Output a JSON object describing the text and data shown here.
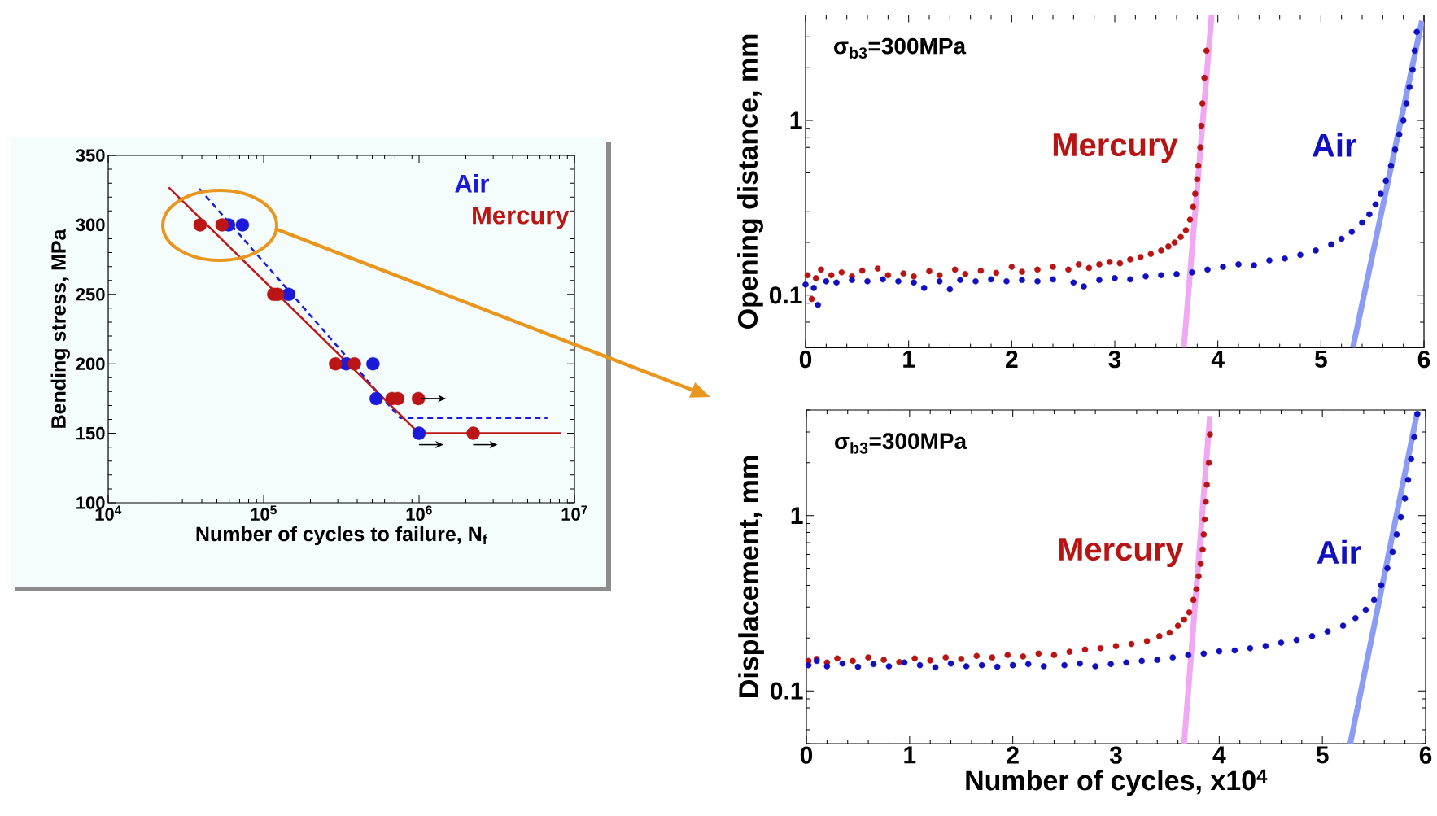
{
  "chart_data": [
    {
      "type": "scatter",
      "xlabel": "Number of cycles to failure, N$_{f}$",
      "ylabel": "Bending stress, MPa",
      "log": "x",
      "xlim": [
        10000,
        10000000
      ],
      "xticks": [
        {
          "value": 10000,
          "label": "10$^{4}$"
        },
        {
          "value": 100000,
          "label": "10$^{5}$"
        },
        {
          "value": 1000000,
          "label": "10$^{6}$"
        },
        {
          "value": 10000000,
          "label": "10$^{7}$"
        }
      ],
      "ylim": [
        100,
        350
      ],
      "yticks": [
        100,
        150,
        200,
        250,
        300,
        350
      ],
      "series": [
        {
          "name": "Air",
          "marker": "circle",
          "color": "#1a1ad8",
          "x": [
            59500,
            73000,
            145000,
            340000,
            505000,
            530000,
            1000000
          ],
          "values": [
            300,
            300,
            250,
            200,
            200,
            175,
            150
          ]
        },
        {
          "name": "Mercury",
          "marker": "circle",
          "color": "#bb1515",
          "x": [
            39000,
            54000,
            116000,
            123000,
            290000,
            384000,
            670000,
            730000,
            990000,
            2230000
          ],
          "values": [
            300,
            300,
            250,
            250,
            200,
            200,
            175,
            175,
            175,
            150
          ]
        },
        {
          "type": "line",
          "marker": "none",
          "line_style": "dashed",
          "color": "#1a1ae0",
          "x": [
            38600,
            756000,
            6700000
          ],
          "values": [
            326,
            161,
            161
          ]
        },
        {
          "type": "line",
          "marker": "none",
          "line_style": "solid",
          "color": "#c01818",
          "x": [
            24500,
            1000000,
            8200000
          ],
          "values": [
            327,
            150,
            150
          ]
        }
      ]
    },
    {
      "type": "scatter",
      "ylabel": "Opening distance, mm",
      "log": "y",
      "annotations": [
        "σ$_{b3}$=300MPa"
      ],
      "xlim": [
        0,
        6
      ],
      "xticks": [
        0,
        1,
        2,
        3,
        4,
        5,
        6
      ],
      "ylim": [
        0.05,
        4
      ],
      "yticks": [
        0.1,
        1
      ],
      "series": [
        {
          "name": "Mercury",
          "marker": "circle",
          "color": "#b81414",
          "x": [
            0.02,
            0.06,
            0.1,
            0.15,
            0.25,
            0.35,
            0.45,
            0.55,
            0.7,
            0.8,
            0.95,
            1.05,
            1.2,
            1.3,
            1.45,
            1.55,
            1.7,
            1.85,
            2.0,
            2.1,
            2.25,
            2.4,
            2.55,
            2.65,
            2.75,
            2.85,
            2.95,
            3.05,
            3.15,
            3.25,
            3.35,
            3.45,
            3.52,
            3.58,
            3.64,
            3.69,
            3.73,
            3.76,
            3.78,
            3.8,
            3.81,
            3.83,
            3.84,
            3.85,
            3.87,
            3.89
          ],
          "values": [
            0.13,
            0.095,
            0.125,
            0.14,
            0.13,
            0.135,
            0.128,
            0.138,
            0.142,
            0.13,
            0.133,
            0.128,
            0.137,
            0.13,
            0.14,
            0.132,
            0.138,
            0.134,
            0.145,
            0.136,
            0.14,
            0.145,
            0.14,
            0.15,
            0.143,
            0.15,
            0.155,
            0.152,
            0.16,
            0.165,
            0.172,
            0.18,
            0.19,
            0.2,
            0.215,
            0.235,
            0.27,
            0.32,
            0.38,
            0.46,
            0.55,
            0.7,
            0.93,
            1.25,
            1.75,
            2.5
          ]
        },
        {
          "name": "Air",
          "marker": "circle",
          "color": "#1010c0",
          "x": [
            0.0,
            0.08,
            0.12,
            0.2,
            0.3,
            0.45,
            0.6,
            0.75,
            0.9,
            1.05,
            1.15,
            1.3,
            1.4,
            1.5,
            1.65,
            1.8,
            1.95,
            2.1,
            2.25,
            2.4,
            2.6,
            2.7,
            2.85,
            3.0,
            3.15,
            3.3,
            3.45,
            3.6,
            3.75,
            3.9,
            4.05,
            4.2,
            4.35,
            4.5,
            4.65,
            4.8,
            4.95,
            5.1,
            5.2,
            5.3,
            5.4,
            5.47,
            5.53,
            5.58,
            5.63,
            5.68,
            5.72,
            5.76,
            5.8,
            5.83,
            5.86,
            5.89,
            5.91,
            5.93
          ],
          "values": [
            0.115,
            0.11,
            0.088,
            0.12,
            0.118,
            0.122,
            0.12,
            0.123,
            0.12,
            0.118,
            0.11,
            0.12,
            0.108,
            0.122,
            0.12,
            0.123,
            0.12,
            0.122,
            0.12,
            0.123,
            0.118,
            0.112,
            0.122,
            0.125,
            0.123,
            0.128,
            0.13,
            0.132,
            0.135,
            0.14,
            0.145,
            0.15,
            0.148,
            0.158,
            0.162,
            0.17,
            0.18,
            0.195,
            0.21,
            0.23,
            0.26,
            0.29,
            0.33,
            0.38,
            0.45,
            0.55,
            0.68,
            0.83,
            1.0,
            1.25,
            1.55,
            1.95,
            2.5,
            3.2
          ]
        },
        {
          "type": "line",
          "marker": "none",
          "color": "#f0a8f2",
          "x": [
            3.67,
            3.94
          ],
          "values": [
            0.05,
            4
          ]
        },
        {
          "type": "line",
          "marker": "none",
          "color": "#8c9cf5",
          "x": [
            5.31,
            5.98
          ],
          "values": [
            0.05,
            3.7
          ]
        }
      ]
    },
    {
      "type": "scatter",
      "xlabel": "Number of cycles, x10$^{4}$",
      "ylabel": "Displacement, mm",
      "log": "y",
      "annotations": [
        "σ$_{b3}$=300MPa"
      ],
      "xlim": [
        0,
        6
      ],
      "xticks": [
        0,
        1,
        2,
        3,
        4,
        5,
        6
      ],
      "ylim": [
        0.05,
        4
      ],
      "yticks": [
        0.1,
        1
      ],
      "series": [
        {
          "name": "Mercury",
          "marker": "circle",
          "color": "#b81414",
          "x": [
            0.02,
            0.1,
            0.2,
            0.3,
            0.45,
            0.6,
            0.75,
            0.9,
            1.05,
            1.2,
            1.35,
            1.5,
            1.65,
            1.8,
            1.95,
            2.1,
            2.25,
            2.4,
            2.55,
            2.7,
            2.85,
            3.0,
            3.15,
            3.3,
            3.42,
            3.52,
            3.6,
            3.66,
            3.71,
            3.75,
            3.78,
            3.8,
            3.82,
            3.84,
            3.85,
            3.86,
            3.87,
            3.88,
            3.9,
            3.91
          ],
          "values": [
            0.148,
            0.152,
            0.145,
            0.153,
            0.148,
            0.155,
            0.15,
            0.146,
            0.153,
            0.149,
            0.155,
            0.152,
            0.158,
            0.155,
            0.16,
            0.157,
            0.163,
            0.16,
            0.167,
            0.172,
            0.175,
            0.18,
            0.185,
            0.192,
            0.205,
            0.215,
            0.235,
            0.255,
            0.28,
            0.33,
            0.38,
            0.45,
            0.53,
            0.64,
            0.78,
            0.95,
            1.2,
            1.5,
            2.0,
            2.9
          ]
        },
        {
          "name": "Air",
          "marker": "circle",
          "color": "#1010c0",
          "x": [
            0.02,
            0.1,
            0.2,
            0.35,
            0.5,
            0.65,
            0.8,
            0.95,
            1.1,
            1.25,
            1.4,
            1.55,
            1.7,
            1.85,
            2.0,
            2.15,
            2.3,
            2.5,
            2.65,
            2.8,
            2.95,
            3.1,
            3.25,
            3.4,
            3.55,
            3.7,
            3.85,
            4.0,
            4.15,
            4.3,
            4.45,
            4.6,
            4.75,
            4.9,
            5.05,
            5.2,
            5.32,
            5.42,
            5.5,
            5.57,
            5.63,
            5.68,
            5.72,
            5.76,
            5.8,
            5.83,
            5.86,
            5.89,
            5.92
          ],
          "values": [
            0.14,
            0.148,
            0.138,
            0.143,
            0.137,
            0.142,
            0.138,
            0.145,
            0.14,
            0.136,
            0.143,
            0.138,
            0.14,
            0.137,
            0.14,
            0.142,
            0.138,
            0.14,
            0.143,
            0.138,
            0.142,
            0.145,
            0.148,
            0.15,
            0.155,
            0.16,
            0.163,
            0.168,
            0.17,
            0.175,
            0.18,
            0.188,
            0.195,
            0.205,
            0.218,
            0.235,
            0.26,
            0.29,
            0.33,
            0.4,
            0.5,
            0.62,
            0.78,
            0.98,
            1.25,
            1.6,
            2.1,
            2.8,
            3.8
          ]
        },
        {
          "type": "line",
          "marker": "none",
          "color": "#f0a8f2",
          "x": [
            3.66,
            3.91
          ],
          "values": [
            0.05,
            3.7
          ]
        },
        {
          "type": "line",
          "marker": "none",
          "color": "#8c9cf5",
          "x": [
            5.27,
            5.92
          ],
          "values": [
            0.05,
            3.9
          ]
        }
      ]
    }
  ]
}
